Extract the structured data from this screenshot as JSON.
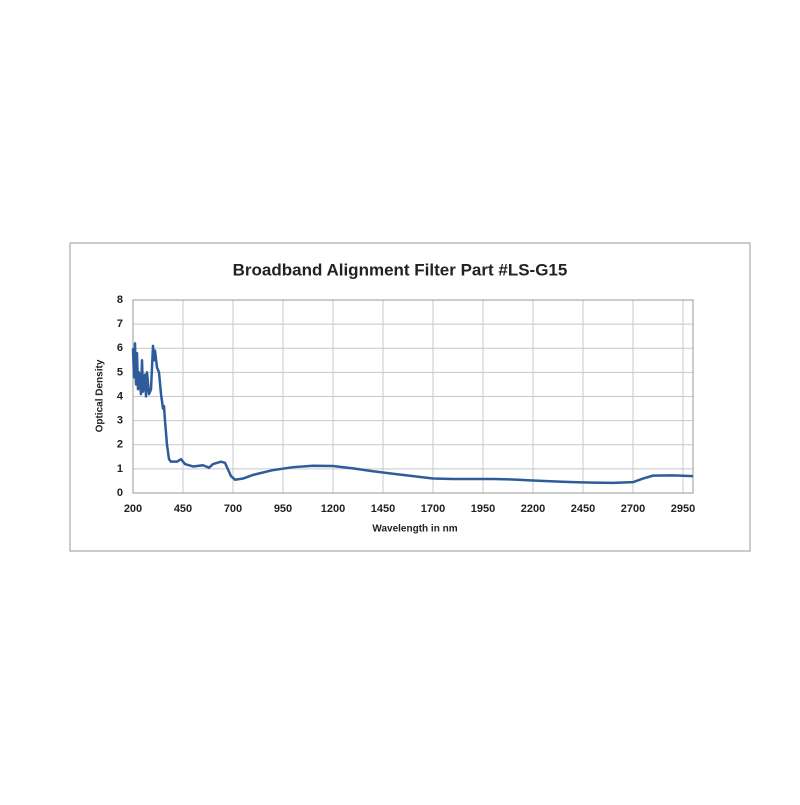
{
  "chart_data": {
    "type": "line",
    "title": "Broadband Alignment Filter Part #LS-G15",
    "x_label": "Wavelength in nm",
    "y_label": "Optical Density",
    "x": [
      200,
      205,
      210,
      215,
      220,
      225,
      230,
      240,
      245,
      250,
      260,
      265,
      270,
      280,
      290,
      300,
      305,
      310,
      320,
      330,
      340,
      350,
      355,
      360,
      370,
      380,
      390,
      420,
      440,
      460,
      500,
      550,
      580,
      600,
      640,
      660,
      690,
      710,
      750,
      800,
      900,
      1000,
      1100,
      1200,
      1300,
      1400,
      1500,
      1600,
      1700,
      1800,
      1900,
      2000,
      2100,
      2200,
      2300,
      2400,
      2500,
      2600,
      2700,
      2750,
      2800,
      2900,
      3000
    ],
    "series": [
      {
        "name": "Optical Density",
        "color": "#2e5c9a",
        "values": [
          6.0,
          4.8,
          6.2,
          4.5,
          5.8,
          4.3,
          5.0,
          4.1,
          5.5,
          4.2,
          4.9,
          4.0,
          5.0,
          4.1,
          4.3,
          6.1,
          5.5,
          5.9,
          5.2,
          5.0,
          4.1,
          3.5,
          3.6,
          3.0,
          2.0,
          1.4,
          1.3,
          1.3,
          1.4,
          1.2,
          1.1,
          1.15,
          1.05,
          1.2,
          1.3,
          1.25,
          0.7,
          0.55,
          0.6,
          0.75,
          0.95,
          1.07,
          1.13,
          1.12,
          1.02,
          0.9,
          0.8,
          0.7,
          0.6,
          0.58,
          0.58,
          0.58,
          0.56,
          0.52,
          0.48,
          0.45,
          0.43,
          0.42,
          0.45,
          0.6,
          0.72,
          0.73,
          0.7
        ]
      }
    ],
    "xlim": [
      200,
      3000
    ],
    "xticks": [
      200,
      450,
      700,
      950,
      1200,
      1450,
      1700,
      1950,
      2200,
      2450,
      2700,
      2950
    ],
    "ylim": [
      0,
      8
    ],
    "yticks": [
      0,
      1,
      2,
      3,
      4,
      5,
      6,
      7,
      8
    ],
    "grid": true
  }
}
